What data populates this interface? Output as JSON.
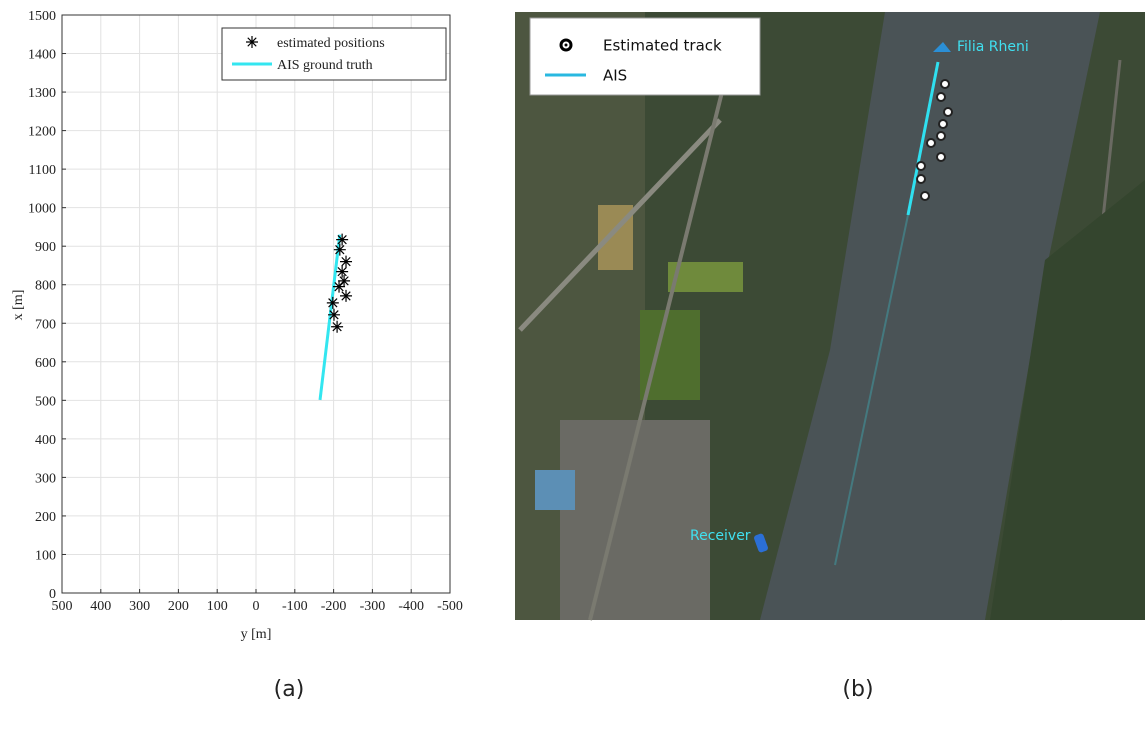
{
  "chart_data": {
    "type": "scatter",
    "xlabel": "y [m]",
    "ylabel": "x [m]",
    "xlim": [
      500,
      -500
    ],
    "xticks": [
      500,
      400,
      300,
      200,
      100,
      0,
      -100,
      -200,
      -300,
      -400,
      -500
    ],
    "ylim": [
      0,
      1500
    ],
    "yticks": [
      0,
      100,
      200,
      300,
      400,
      500,
      600,
      700,
      800,
      900,
      1000,
      1100,
      1200,
      1300,
      1400,
      1500
    ],
    "grid": true,
    "legend": "upper right",
    "series": [
      {
        "name": "estimated positions",
        "type": "scatter",
        "color": "#000000",
        "x": [
          -222,
          -216,
          -232,
          -222,
          -227,
          -214,
          -232,
          -198,
          -201,
          -209
        ],
        "values": [
          917,
          891,
          860,
          834,
          810,
          795,
          771,
          753,
          722,
          691
        ]
      },
      {
        "name": "AIS ground truth",
        "type": "line",
        "color": "#33e6f0",
        "x": [
          -165,
          -216
        ],
        "values": [
          501,
          930
        ]
      }
    ]
  },
  "map": {
    "legend": [
      "Estimated track",
      "AIS"
    ],
    "labels": [
      "Filia Rheni",
      "Receiver"
    ]
  },
  "captions": [
    "(a)",
    "(b)"
  ]
}
